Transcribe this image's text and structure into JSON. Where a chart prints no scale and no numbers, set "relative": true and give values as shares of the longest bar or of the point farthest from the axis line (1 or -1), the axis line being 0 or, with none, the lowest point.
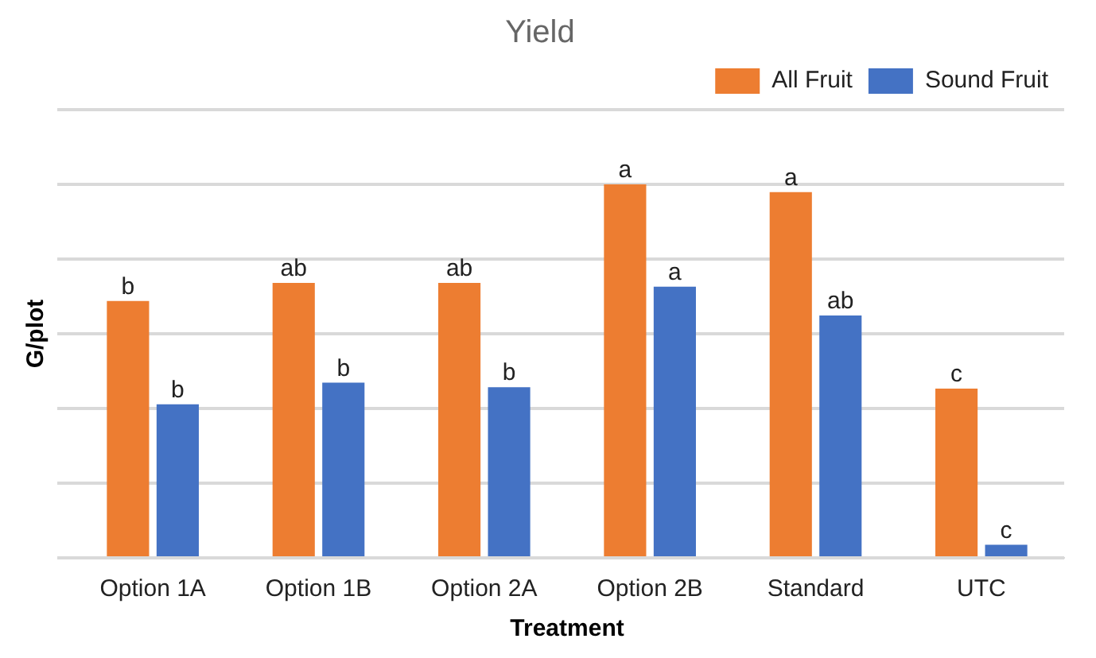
{
  "chart_data": {
    "type": "bar",
    "title": "Yield",
    "xlabel": "Treatment",
    "ylabel": "G/plot",
    "relative": true,
    "grid": "y",
    "legend": "top right",
    "categories": [
      "Option 1A",
      "Option 1B",
      "Option 2A",
      "Option 2B",
      "Standard",
      "UTC"
    ],
    "series": [
      {
        "name": "All Fruit",
        "color": "#ed7d31",
        "values": [
          0.688,
          0.736,
          0.736,
          1,
          0.979,
          0.453
        ]
      },
      {
        "name": "Sound Fruit",
        "color": "#4472c4",
        "values": [
          0.411,
          0.469,
          0.457,
          0.726,
          0.649,
          0.035
        ]
      }
    ],
    "annotations": [
      {
        "text": "b",
        "x": "Option 1A",
        "y": 0.688
      },
      {
        "text": "b",
        "x": "Option 1A",
        "y": 0.411
      },
      {
        "text": "ab",
        "x": "Option 1B",
        "y": 0.736
      },
      {
        "text": "b",
        "x": "Option 1B",
        "y": 0.469
      },
      {
        "text": "ab",
        "x": "Option 2A",
        "y": 0.736
      },
      {
        "text": "b",
        "x": "Option 2A",
        "y": 0.457
      },
      {
        "text": "a",
        "x": "Option 2B",
        "y": 1
      },
      {
        "text": "a",
        "x": "Option 2B",
        "y": 0.726
      },
      {
        "text": "a",
        "x": "Standard",
        "y": 0.979
      },
      {
        "text": "ab",
        "x": "Standard",
        "y": 0.649
      },
      {
        "text": "c",
        "x": "UTC",
        "y": 0.453
      },
      {
        "text": "c",
        "x": "UTC",
        "y": 0.035
      }
    ]
  }
}
